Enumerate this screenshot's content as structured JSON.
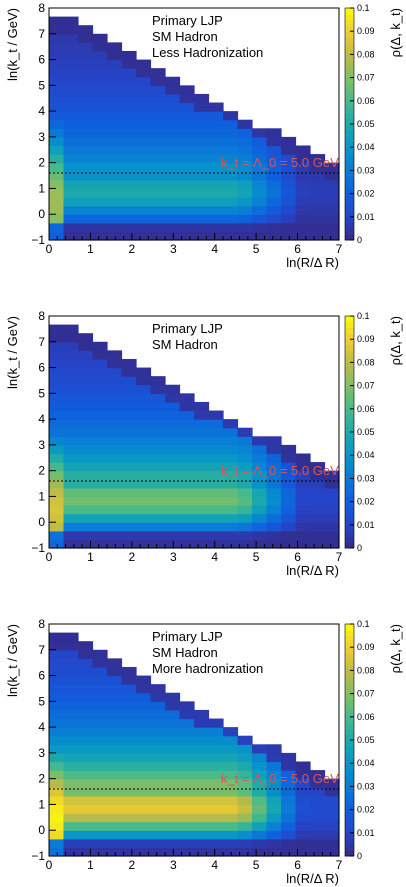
{
  "chart_data": [
    {
      "type": "heatmap",
      "legend": [
        "Primary LJP",
        "SM Hadron",
        "Less Hadronization"
      ],
      "xlabel": "ln(R/Δ R)",
      "ylabel": "ln(k_t / GeV)",
      "zlabel": "ρ(Δ, k_t)",
      "xlim": [
        0,
        7
      ],
      "ylim": [
        -1,
        8
      ],
      "zlim": [
        0,
        0.1
      ],
      "annotation": "k_t = Λ_0 = 5.0 GeV",
      "threshold_y": 1.6,
      "level": "low",
      "x_ticks": [
        "0",
        "1",
        "2",
        "3",
        "4",
        "5",
        "6",
        "7"
      ],
      "y_ticks": [
        "−1",
        "0",
        "1",
        "2",
        "3",
        "4",
        "5",
        "6",
        "7",
        "8"
      ],
      "z_ticks": [
        "0",
        "0.01",
        "0.02",
        "0.03",
        "0.04",
        "0.05",
        "0.06",
        "0.07",
        "0.08",
        "0.09",
        "0.1"
      ]
    },
    {
      "type": "heatmap",
      "legend": [
        "Primary LJP",
        "SM Hadron"
      ],
      "xlabel": "ln(R/Δ R)",
      "ylabel": "ln(k_t / GeV)",
      "zlabel": "ρ(Δ, k_t)",
      "xlim": [
        0,
        7
      ],
      "ylim": [
        -1,
        8
      ],
      "zlim": [
        0,
        0.1
      ],
      "annotation": "k_t = Λ_0 = 5.0 GeV",
      "threshold_y": 1.6,
      "level": "mid",
      "x_ticks": [
        "0",
        "1",
        "2",
        "3",
        "4",
        "5",
        "6",
        "7"
      ],
      "y_ticks": [
        "−1",
        "0",
        "1",
        "2",
        "3",
        "4",
        "5",
        "6",
        "7",
        "8"
      ],
      "z_ticks": [
        "0",
        "0.01",
        "0.02",
        "0.03",
        "0.04",
        "0.05",
        "0.06",
        "0.07",
        "0.08",
        "0.09",
        "0.1"
      ]
    },
    {
      "type": "heatmap",
      "legend": [
        "Primary LJP",
        "SM Hadron",
        "More hadronization"
      ],
      "xlabel": "ln(R/Δ R)",
      "ylabel": "ln(k_t / GeV)",
      "zlabel": "ρ(Δ, k_t)",
      "xlim": [
        0,
        7
      ],
      "ylim": [
        -1,
        8
      ],
      "zlim": [
        0,
        0.1
      ],
      "annotation": "k_t = Λ_0 = 5.0 GeV",
      "threshold_y": 1.6,
      "level": "high",
      "x_ticks": [
        "0",
        "1",
        "2",
        "3",
        "4",
        "5",
        "6",
        "7"
      ],
      "y_ticks": [
        "−1",
        "0",
        "1",
        "2",
        "3",
        "4",
        "5",
        "6",
        "7",
        "8"
      ],
      "z_ticks": [
        "0",
        "0.01",
        "0.02",
        "0.03",
        "0.04",
        "0.05",
        "0.06",
        "0.07",
        "0.08",
        "0.09",
        "0.1"
      ]
    }
  ]
}
